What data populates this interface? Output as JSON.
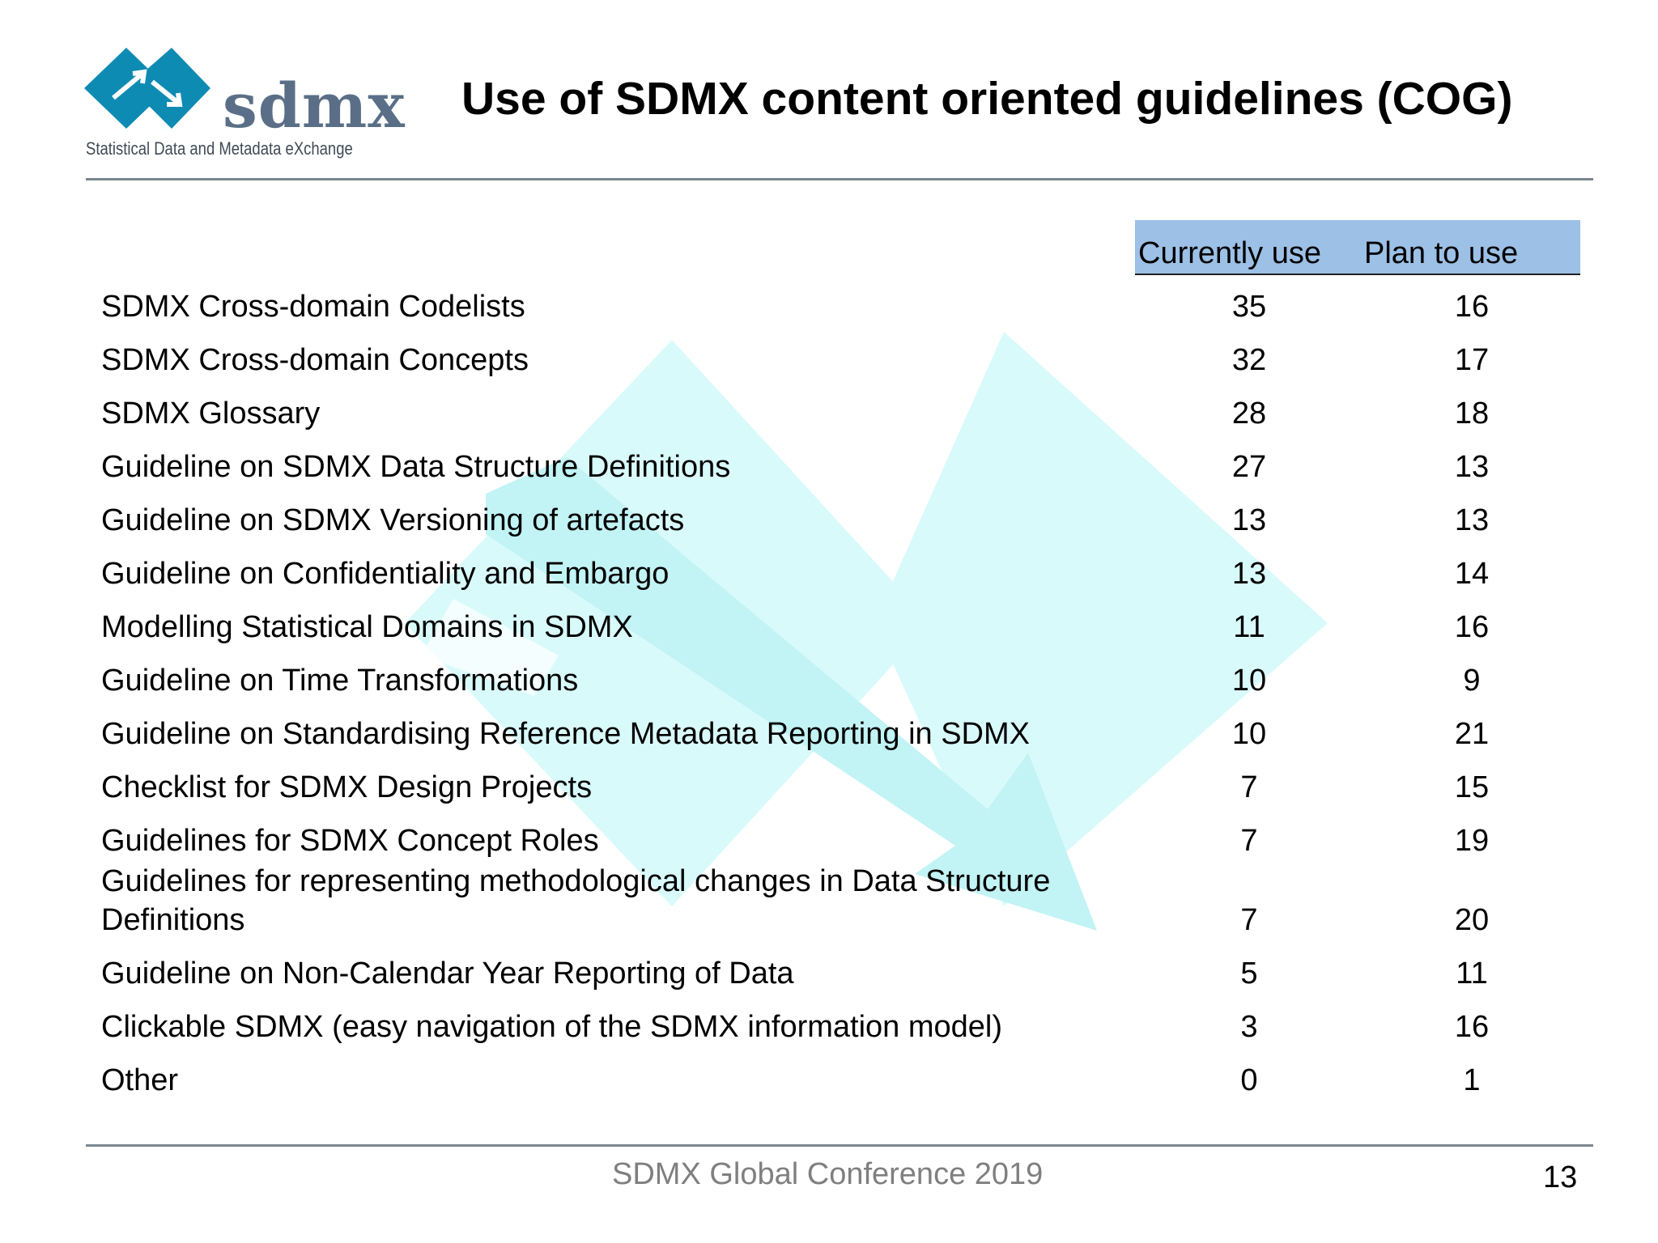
{
  "logo": {
    "name": "sdmx",
    "subtitle": "Statistical Data and Metadata eXchange"
  },
  "title": "Use of SDMX content oriented guidelines (COG)",
  "table": {
    "headers": [
      "Currently use",
      "Plan to use"
    ],
    "rows": [
      {
        "label": "SDMX Cross-domain Codelists",
        "current": "35",
        "plan": "16"
      },
      {
        "label": "SDMX Cross-domain Concepts",
        "current": "32",
        "plan": "17"
      },
      {
        "label": "SDMX Glossary",
        "current": "28",
        "plan": "18"
      },
      {
        "label": "Guideline on SDMX Data Structure Definitions",
        "current": "27",
        "plan": "13"
      },
      {
        "label": "Guideline on SDMX Versioning of artefacts",
        "current": "13",
        "plan": "13"
      },
      {
        "label": "Guideline on Confidentiality and Embargo",
        "current": "13",
        "plan": "14"
      },
      {
        "label": "Modelling Statistical Domains in SDMX",
        "current": "11",
        "plan": "16"
      },
      {
        "label": "Guideline on Time Transformations",
        "current": "10",
        "plan": "9"
      },
      {
        "label": "Guideline on Standardising Reference Metadata Reporting in SDMX",
        "current": "10",
        "plan": "21"
      },
      {
        "label": "Checklist for SDMX Design Projects",
        "current": "7",
        "plan": "15"
      },
      {
        "label": "Guidelines for SDMX Concept Roles",
        "current": "7",
        "plan": "19"
      },
      {
        "label_line1": "Guidelines for representing methodological changes in Data Structure",
        "label_line2": "Definitions",
        "current": "7",
        "plan": "20"
      },
      {
        "label": "Guideline on Non-Calendar Year Reporting of Data",
        "current": "5",
        "plan": "11"
      },
      {
        "label": "Clickable SDMX (easy navigation of the SDMX information model)",
        "current": "3",
        "plan": "16"
      },
      {
        "label": "Other",
        "current": "0",
        "plan": "1"
      }
    ]
  },
  "footer": {
    "conference": "SDMX Global Conference 2019",
    "page_number": "13"
  },
  "colors": {
    "header_band": "#9cc0e6",
    "logo_diamond": "#0e8bb3",
    "watermark": "#d9fafb",
    "rule": "#7c878e"
  }
}
